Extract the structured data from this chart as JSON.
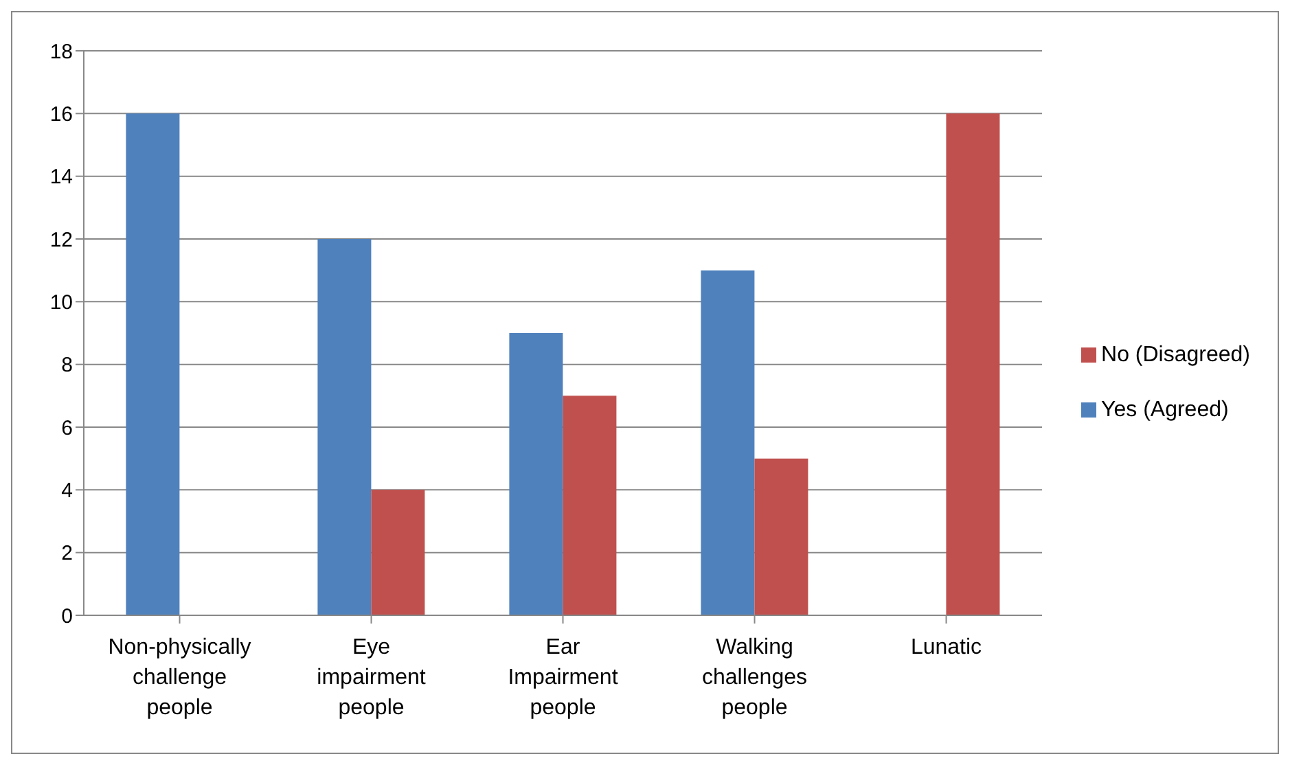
{
  "chart_data": {
    "type": "bar",
    "categories": [
      "Non-physically challenge people",
      "Eye impairment people",
      "Ear Impairment people",
      "Walking challenges people",
      "Lunatic"
    ],
    "series": [
      {
        "name": "Yes (Agreed)",
        "color": "#4f81bd",
        "values": [
          16,
          12,
          9,
          11,
          0
        ]
      },
      {
        "name": "No (Disagreed)",
        "color": "#c0504d",
        "values": [
          0,
          4,
          7,
          5,
          16
        ]
      }
    ],
    "ylim": [
      0,
      18
    ],
    "yticks": [
      0,
      2,
      4,
      6,
      8,
      10,
      12,
      14,
      16,
      18
    ],
    "grid": "y",
    "legend": "right"
  }
}
